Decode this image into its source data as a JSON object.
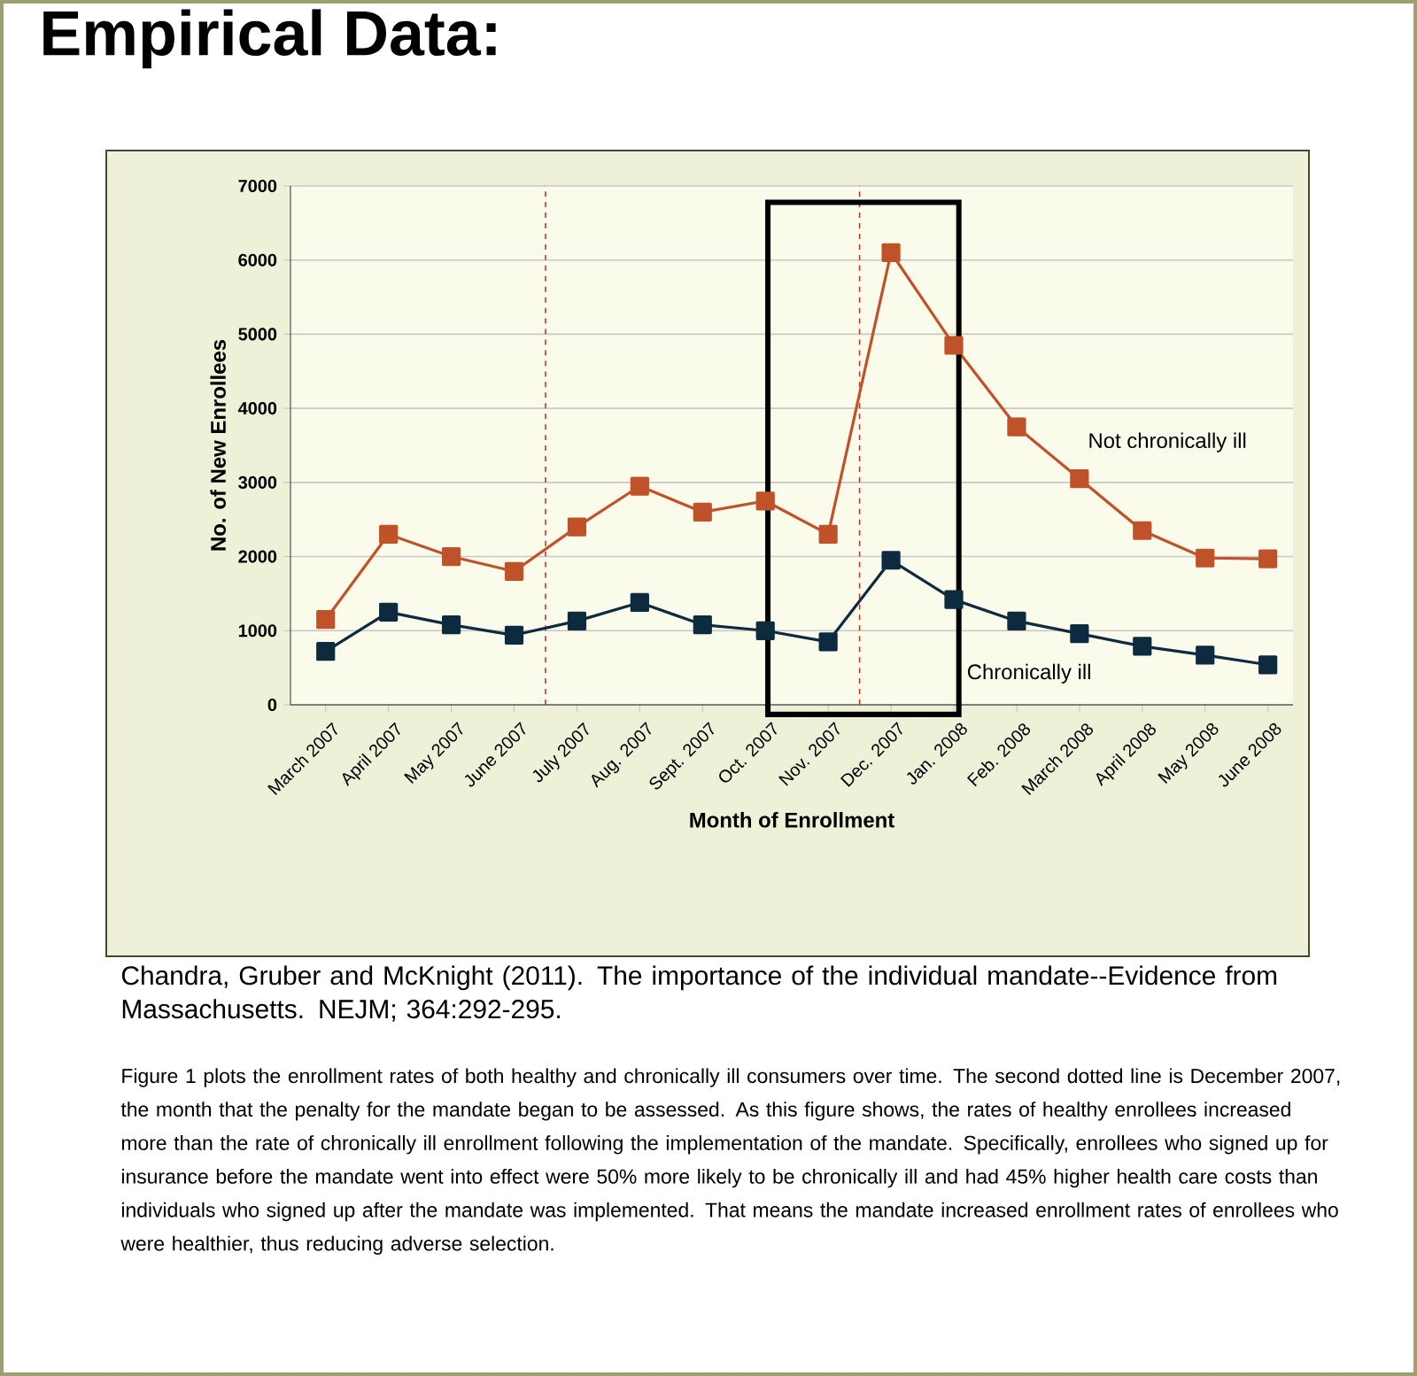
{
  "chart_data": {
    "type": "line",
    "title": "Empirical Data:",
    "xlabel": "Month of Enrollment",
    "ylabel": "No. of New Enrollees",
    "categories": [
      "March 2007",
      "April 2007",
      "May 2007",
      "June 2007",
      "July 2007",
      "Aug. 2007",
      "Sept. 2007",
      "Oct. 2007",
      "Nov. 2007",
      "Dec. 2007",
      "Jan. 2008",
      "Feb. 2008",
      "March 2008",
      "April 2008",
      "May 2008",
      "June 2008"
    ],
    "series": [
      {
        "name": "Not chronically ill",
        "color": "#c0522a",
        "values": [
          1150,
          2300,
          2000,
          1800,
          2400,
          2950,
          2600,
          2750,
          2300,
          6100,
          4850,
          3750,
          3050,
          2350,
          1980,
          1970
        ]
      },
      {
        "name": "Chronically ill",
        "color": "#0d2a3f",
        "values": [
          720,
          1250,
          1080,
          940,
          1130,
          1380,
          1080,
          1000,
          850,
          1950,
          1420,
          1130,
          960,
          790,
          670,
          540
        ]
      }
    ],
    "ylim": [
      0,
      7000
    ],
    "yticks": [
      0,
      1000,
      2000,
      3000,
      4000,
      5000,
      6000,
      7000
    ],
    "grid": "y",
    "legend": false,
    "marker": "square",
    "line_style": "solid",
    "annotations": [
      "Chandra, Gruber and McKnight (2011). The importance of the individual mandate--Evidence from Massachusetts. NEJM; 364:292-295.",
      "Figure 1 plots the enrollment rates of both healthy and chronically ill consumers over time. The second dotted line is December 2007, the month that the penalty for the mandate began to be assessed. As this figure shows, the rates of healthy enrollees increased more than the rate of chronically ill enrollment following the implementation of the mandate. Specifically, enrollees who signed up for insurance before the mandate went into effect were 50% more likely to be chronically ill and had 45% higher health care costs than individuals who signed up after the mandate was implemented. That means the mandate increased enrollment rates of enrollees who were healthier, thus reducing adverse selection."
    ]
  }
}
